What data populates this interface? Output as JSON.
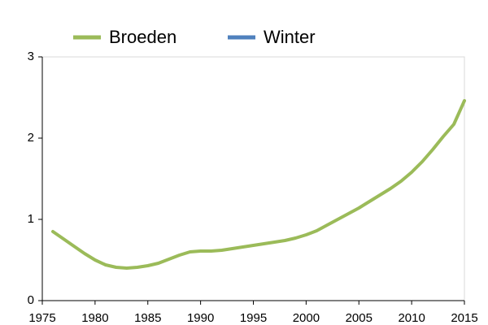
{
  "chart_data": {
    "type": "line",
    "x": [
      1976,
      1977,
      1978,
      1979,
      1980,
      1981,
      1982,
      1983,
      1984,
      1985,
      1986,
      1987,
      1988,
      1989,
      1990,
      1991,
      1992,
      1993,
      1994,
      1995,
      1996,
      1997,
      1998,
      1999,
      2000,
      2001,
      2002,
      2003,
      2004,
      2005,
      2006,
      2007,
      2008,
      2009,
      2010,
      2011,
      2012,
      2013,
      2014,
      2015
    ],
    "series": [
      {
        "name": "Broeden",
        "color": "#9bbb59",
        "values": [
          0.85,
          0.76,
          0.67,
          0.58,
          0.5,
          0.44,
          0.41,
          0.4,
          0.41,
          0.43,
          0.46,
          0.51,
          0.56,
          0.6,
          0.61,
          0.61,
          0.62,
          0.64,
          0.66,
          0.68,
          0.7,
          0.72,
          0.74,
          0.77,
          0.81,
          0.86,
          0.93,
          1.0,
          1.07,
          1.14,
          1.22,
          1.3,
          1.38,
          1.47,
          1.58,
          1.71,
          1.86,
          2.02,
          2.17,
          2.46
        ]
      },
      {
        "name": "Winter",
        "color": "#4f81bd",
        "values": [
          null,
          null,
          null,
          null,
          null,
          null,
          null,
          null,
          null,
          null,
          null,
          null,
          null,
          null,
          null,
          null,
          null,
          null,
          null,
          null,
          null,
          null,
          null,
          null,
          null,
          null,
          null,
          null,
          null,
          null,
          null,
          null,
          null,
          null,
          null,
          null,
          null,
          null,
          null,
          null
        ]
      }
    ],
    "xlim": [
      1975,
      2015
    ],
    "xticks": [
      1975,
      1980,
      1985,
      1990,
      1995,
      2000,
      2005,
      2010,
      2015
    ],
    "ylim": [
      0,
      3
    ],
    "yticks": [
      0,
      1,
      2,
      3
    ],
    "grid": false
  }
}
